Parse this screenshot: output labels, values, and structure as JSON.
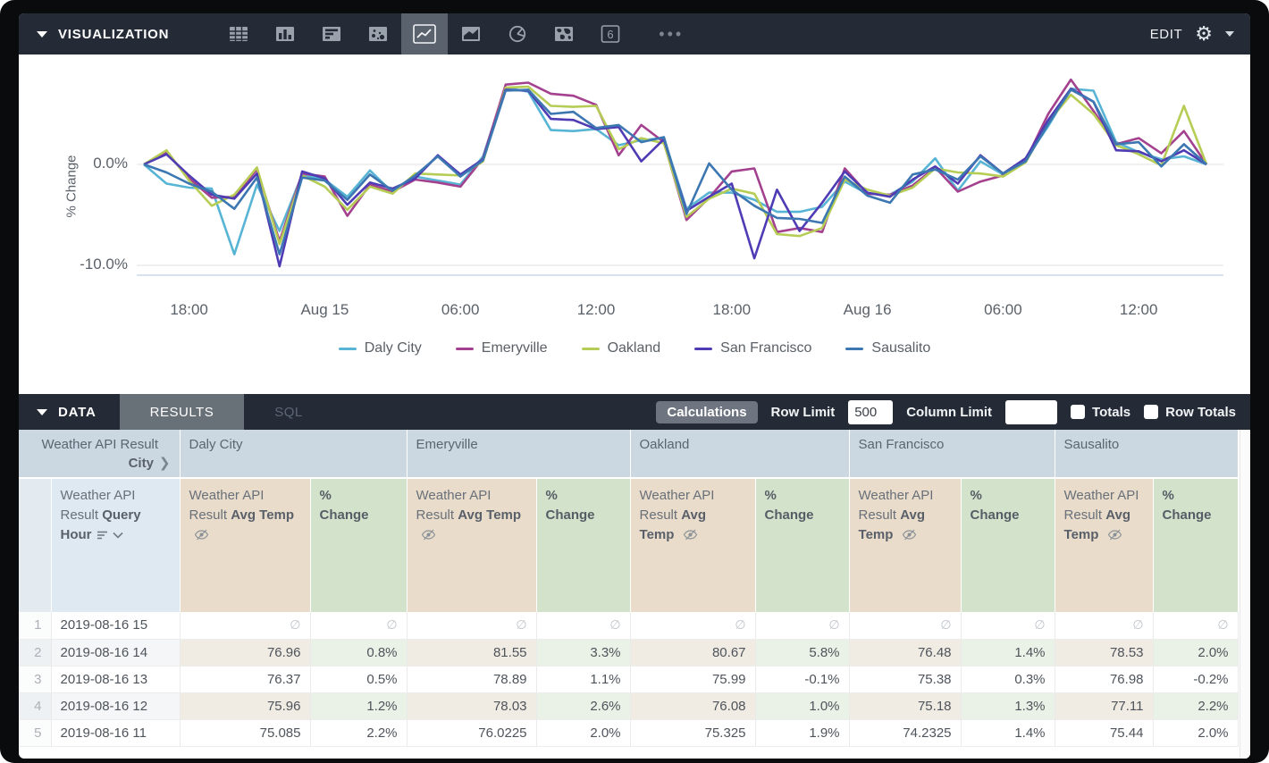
{
  "viz": {
    "title": "VISUALIZATION",
    "edit_label": "EDIT",
    "more_label": "•••",
    "icons": [
      "table-chart-icon",
      "column-chart-icon",
      "bar-chart-icon",
      "scatter-chart-icon",
      "line-chart-icon",
      "area-chart-icon",
      "pie-chart-icon",
      "map-chart-icon",
      "single-value-icon"
    ],
    "selected_icon": "line-chart-icon"
  },
  "chart_data": {
    "type": "line",
    "ylabel": "% Change",
    "y_tick_labels": [
      "0.0%",
      "-10.0%"
    ],
    "ylim": [
      -11,
      9.5
    ],
    "x_start": "2019-08-14 16:00",
    "x_end": "2019-08-16 15:00",
    "x_interval_hours": 1,
    "n_points": 48,
    "x_tick_labels": [
      "18:00",
      "Aug 15",
      "06:00",
      "12:00",
      "18:00",
      "Aug 16",
      "06:00",
      "12:00"
    ],
    "x_tick_indices": [
      2,
      8,
      14,
      20,
      26,
      32,
      38,
      44
    ],
    "grid": true,
    "legend_position": "bottom",
    "series": [
      {
        "name": "Daly City",
        "color": "#57b4d4",
        "values": [
          0,
          -1.9,
          -2.3,
          -2.4,
          -8.9,
          -2.0,
          -6.6,
          -1.0,
          -1.5,
          -3.2,
          -0.6,
          -2.8,
          -1.2,
          -1.6,
          -2.0,
          0.8,
          7.6,
          7.2,
          3.4,
          3.3,
          3.5,
          1.9,
          2.4,
          2.6,
          -4.4,
          -2.8,
          -2.8,
          -3.5,
          -4.7,
          -4.7,
          -4.2,
          -1.7,
          -2.9,
          -3.0,
          -1.7,
          0.6,
          -2.6,
          0.3,
          -1.0,
          0.5,
          3.8,
          7.5,
          7.3,
          2.2,
          1.2,
          0.5,
          0.8,
          0
        ]
      },
      {
        "name": "Emeryville",
        "color": "#a4418f",
        "values": [
          0,
          1.2,
          -1.4,
          -3.3,
          -3.2,
          -0.5,
          -7.6,
          -0.9,
          -1.2,
          -5.1,
          -2.0,
          -2.7,
          -1.5,
          -1.8,
          -2.2,
          0.6,
          7.9,
          8.1,
          7.0,
          6.8,
          5.9,
          0.9,
          3.9,
          2.2,
          -5.5,
          -3.3,
          -0.7,
          -0.4,
          -6.7,
          -6.3,
          -6.7,
          -0.4,
          -2.9,
          -3.0,
          -2.1,
          -0.3,
          -2.7,
          -1.7,
          -1.1,
          0.4,
          5.0,
          8.4,
          5.3,
          2.0,
          2.6,
          1.1,
          3.3,
          0
        ]
      },
      {
        "name": "Oakland",
        "color": "#b6cd55",
        "values": [
          0,
          1.4,
          -1.6,
          -4.1,
          -3.0,
          -0.3,
          -7.9,
          -1.1,
          -2.2,
          -4.5,
          -2.2,
          -2.9,
          -0.9,
          -1.0,
          -1.1,
          0.3,
          7.6,
          7.7,
          5.8,
          5.7,
          5.8,
          1.5,
          2.6,
          2.1,
          -5.2,
          -3.4,
          -2.4,
          -2.9,
          -6.9,
          -7.1,
          -6.3,
          -1.5,
          -2.5,
          -3.1,
          -2.3,
          -0.4,
          -0.8,
          -0.9,
          -1.2,
          0.2,
          4.2,
          6.9,
          5.0,
          1.9,
          1.0,
          -0.1,
          5.8,
          0
        ]
      },
      {
        "name": "San Francisco",
        "color": "#4f3cb5",
        "values": [
          0,
          1.0,
          -1.1,
          -3.0,
          -3.4,
          -0.9,
          -10.1,
          -0.7,
          -1.4,
          -4.0,
          -1.8,
          -2.4,
          -1.4,
          0.9,
          -1.0,
          0.5,
          7.4,
          7.3,
          4.5,
          4.4,
          3.5,
          3.7,
          0.3,
          2.5,
          -4.6,
          -3.2,
          -1.9,
          -9.3,
          -2.5,
          -6.6,
          -3.8,
          -0.7,
          -2.8,
          -3.2,
          -1.5,
          -0.2,
          -1.9,
          0.9,
          -0.9,
          0.6,
          4.4,
          7.5,
          6.2,
          1.4,
          1.3,
          0.3,
          1.4,
          0
        ]
      },
      {
        "name": "Sausalito",
        "color": "#3c77b2",
        "values": [
          0,
          -0.8,
          -1.9,
          -2.7,
          -4.4,
          -1.3,
          -8.9,
          -1.3,
          -1.6,
          -3.5,
          -1.0,
          -2.6,
          -1.1,
          0.8,
          -1.2,
          0.4,
          7.3,
          7.4,
          5.0,
          5.2,
          3.6,
          3.9,
          2.2,
          2.7,
          -4.9,
          0.1,
          -2.5,
          -4.1,
          -5.3,
          -5.4,
          -5.8,
          -1.2,
          -3.1,
          -3.8,
          -1.0,
          -0.5,
          -1.5,
          0.8,
          -0.9,
          0.3,
          4.0,
          7.4,
          6.2,
          2.0,
          2.2,
          -0.2,
          2.0,
          0
        ]
      }
    ]
  },
  "data_bar": {
    "title": "DATA",
    "tabs": [
      {
        "label": "RESULTS",
        "active": true
      },
      {
        "label": "SQL",
        "active": false
      }
    ],
    "calculations_label": "Calculations",
    "row_limit_label": "Row Limit",
    "row_limit_value": "500",
    "column_limit_label": "Column Limit",
    "column_limit_value": "",
    "totals_label": "Totals",
    "row_totals_label": "Row Totals"
  },
  "table": {
    "corner_line1": "Weather API Result",
    "corner_bold": "City",
    "corner_chevron": "❯",
    "dim_prefix": "Weather API Result",
    "dim_bold": "Query Hour",
    "measure_prefix": "Weather API Result",
    "measure_bold": "Avg Temp",
    "pct_line1": "%",
    "pct_line2": "Change",
    "groups": [
      "Daly City",
      "Emeryville",
      "Oakland",
      "San Francisco",
      "Sausalito"
    ],
    "null_symbol": "∅",
    "rows": [
      {
        "n": "1",
        "hour": "2019-08-16 15",
        "cells": [
          "∅",
          "∅",
          "∅",
          "∅",
          "∅",
          "∅",
          "∅",
          "∅",
          "∅",
          "∅"
        ]
      },
      {
        "n": "2",
        "hour": "2019-08-16 14",
        "cells": [
          "76.96",
          "0.8%",
          "81.55",
          "3.3%",
          "80.67",
          "5.8%",
          "76.48",
          "1.4%",
          "78.53",
          "2.0%"
        ]
      },
      {
        "n": "3",
        "hour": "2019-08-16 13",
        "cells": [
          "76.37",
          "0.5%",
          "78.89",
          "1.1%",
          "75.99",
          "-0.1%",
          "75.38",
          "0.3%",
          "76.98",
          "-0.2%"
        ]
      },
      {
        "n": "4",
        "hour": "2019-08-16 12",
        "cells": [
          "75.96",
          "1.2%",
          "78.03",
          "2.6%",
          "76.08",
          "1.0%",
          "75.18",
          "1.3%",
          "77.11",
          "2.2%"
        ]
      },
      {
        "n": "5",
        "hour": "2019-08-16 11",
        "cells": [
          "75.085",
          "2.2%",
          "76.0225",
          "2.0%",
          "75.325",
          "1.9%",
          "74.2325",
          "1.4%",
          "75.44",
          "2.0%"
        ]
      }
    ]
  },
  "colors": {
    "bar_background": "#242b37",
    "selected_tile": "#5a626d",
    "group_header": "#ccd8e1",
    "dim_header": "#dfe9f2",
    "measure_header": "#eadcca",
    "pct_header": "#d3e2cb",
    "even_row_temp": "#f0ebe3",
    "even_row_pct": "#eaf2e7"
  }
}
